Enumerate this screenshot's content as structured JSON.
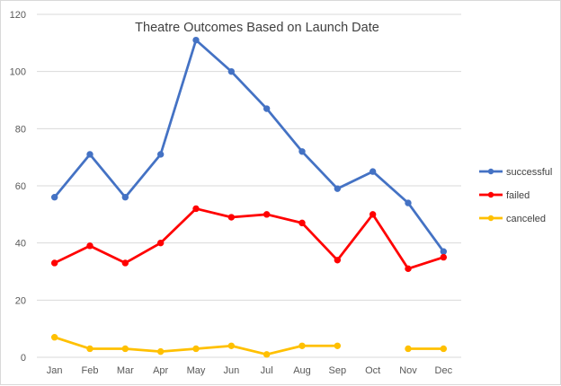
{
  "chart_data": {
    "type": "line",
    "title": "Theatre Outcomes Based on Launch Date",
    "xlabel": "",
    "ylabel": "",
    "categories": [
      "Jan",
      "Feb",
      "Mar",
      "Apr",
      "May",
      "Jun",
      "Jul",
      "Aug",
      "Sep",
      "Oct",
      "Nov",
      "Dec"
    ],
    "ylim": [
      0,
      120
    ],
    "yticks": [
      0,
      20,
      40,
      60,
      80,
      100,
      120
    ],
    "grid": "horizontal",
    "legend_position": "right",
    "series": [
      {
        "name": "successful",
        "color": "#4472c4",
        "values": [
          56,
          71,
          56,
          71,
          111,
          100,
          87,
          72,
          59,
          65,
          54,
          37
        ]
      },
      {
        "name": "failed",
        "color": "#ff0000",
        "values": [
          33,
          39,
          33,
          40,
          52,
          49,
          50,
          47,
          34,
          50,
          31,
          35
        ]
      },
      {
        "name": "canceled",
        "color": "#ffc000",
        "values": [
          7,
          3,
          3,
          2,
          3,
          4,
          1,
          4,
          4,
          null,
          3,
          3
        ]
      }
    ]
  }
}
